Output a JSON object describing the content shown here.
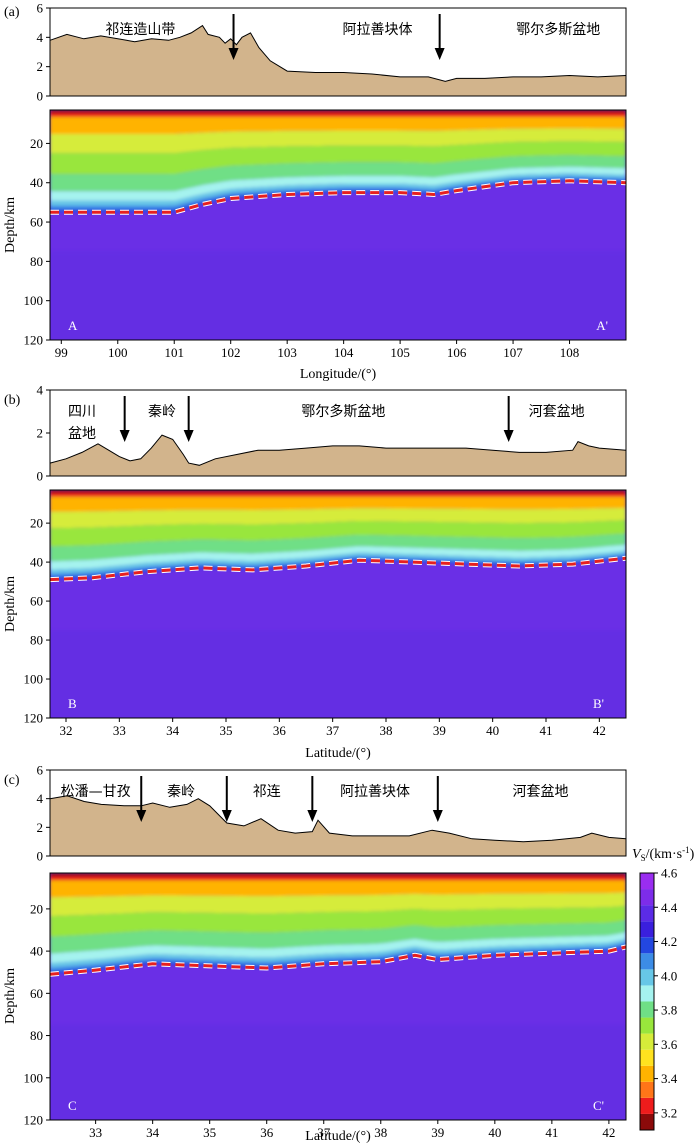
{
  "chart_data": [
    {
      "type": "heatmap",
      "panel_label": "(a)",
      "xlabel": "Longitude/(°)",
      "xlim": [
        98.8,
        109.0
      ],
      "x_ticks": [
        99,
        100,
        101,
        102,
        103,
        104,
        105,
        106,
        107,
        108
      ],
      "topo": {
        "ylim": [
          0,
          6
        ],
        "y_ticks": [
          0,
          2,
          4,
          6
        ],
        "profile": [
          [
            98.8,
            3.8
          ],
          [
            99.1,
            4.2
          ],
          [
            99.4,
            3.9
          ],
          [
            99.7,
            4.1
          ],
          [
            100.0,
            3.9
          ],
          [
            100.3,
            3.7
          ],
          [
            100.6,
            3.9
          ],
          [
            100.9,
            3.8
          ],
          [
            101.1,
            4.0
          ],
          [
            101.3,
            4.3
          ],
          [
            101.5,
            4.8
          ],
          [
            101.6,
            4.2
          ],
          [
            101.8,
            4.0
          ],
          [
            101.9,
            3.6
          ],
          [
            102.0,
            3.9
          ],
          [
            102.1,
            3.5
          ],
          [
            102.2,
            4.0
          ],
          [
            102.35,
            4.3
          ],
          [
            102.5,
            3.3
          ],
          [
            102.7,
            2.4
          ],
          [
            103.0,
            1.7
          ],
          [
            103.5,
            1.6
          ],
          [
            104.0,
            1.6
          ],
          [
            104.5,
            1.5
          ],
          [
            105.0,
            1.3
          ],
          [
            105.5,
            1.3
          ],
          [
            105.8,
            1.0
          ],
          [
            106.0,
            1.2
          ],
          [
            106.5,
            1.2
          ],
          [
            107.0,
            1.3
          ],
          [
            107.5,
            1.3
          ],
          [
            108.0,
            1.4
          ],
          [
            108.5,
            1.3
          ],
          [
            109.0,
            1.4
          ]
        ],
        "regions": [
          {
            "label": "祁连造山带",
            "x": 100.4
          },
          {
            "label": "阿拉善块体",
            "x": 104.6
          },
          {
            "label": "鄂尔多斯盆地",
            "x": 107.8
          }
        ],
        "arrows": [
          102.05,
          105.7
        ]
      },
      "velocity": {
        "ylabel": "Depth/km",
        "ylim": [
          3,
          120
        ],
        "y_ticks": [
          20,
          40,
          60,
          80,
          100,
          120
        ],
        "moho": [
          [
            98.8,
            55
          ],
          [
            99.5,
            55
          ],
          [
            100.5,
            55
          ],
          [
            101.0,
            55
          ],
          [
            101.5,
            51
          ],
          [
            102.0,
            48
          ],
          [
            103.0,
            46
          ],
          [
            104.0,
            45
          ],
          [
            105.0,
            45
          ],
          [
            105.6,
            46
          ],
          [
            106.0,
            44
          ],
          [
            107.0,
            40
          ],
          [
            108.0,
            39
          ],
          [
            109.0,
            40
          ]
        ],
        "profile_start": "A",
        "profile_end": "A'"
      }
    },
    {
      "type": "heatmap",
      "panel_label": "(b)",
      "xlabel": "Latitude/(°)",
      "xlim": [
        31.7,
        42.5
      ],
      "x_ticks": [
        32,
        33,
        34,
        35,
        36,
        37,
        38,
        39,
        40,
        41,
        42
      ],
      "topo": {
        "ylim": [
          0,
          4
        ],
        "y_ticks": [
          0,
          2,
          4
        ],
        "profile": [
          [
            31.7,
            0.6
          ],
          [
            32.0,
            0.8
          ],
          [
            32.3,
            1.1
          ],
          [
            32.6,
            1.5
          ],
          [
            32.8,
            1.2
          ],
          [
            33.0,
            0.9
          ],
          [
            33.2,
            0.7
          ],
          [
            33.4,
            0.8
          ],
          [
            33.6,
            1.3
          ],
          [
            33.8,
            1.9
          ],
          [
            34.0,
            1.7
          ],
          [
            34.2,
            1.0
          ],
          [
            34.3,
            0.6
          ],
          [
            34.5,
            0.5
          ],
          [
            34.8,
            0.8
          ],
          [
            35.2,
            1.0
          ],
          [
            35.6,
            1.2
          ],
          [
            36.0,
            1.2
          ],
          [
            36.5,
            1.3
          ],
          [
            37.0,
            1.4
          ],
          [
            37.5,
            1.4
          ],
          [
            38.0,
            1.3
          ],
          [
            38.5,
            1.3
          ],
          [
            39.0,
            1.3
          ],
          [
            39.5,
            1.3
          ],
          [
            40.0,
            1.2
          ],
          [
            40.5,
            1.1
          ],
          [
            41.0,
            1.1
          ],
          [
            41.5,
            1.2
          ],
          [
            41.6,
            1.6
          ],
          [
            41.8,
            1.4
          ],
          [
            42.0,
            1.3
          ],
          [
            42.5,
            1.2
          ]
        ],
        "regions": [
          {
            "label": "四川",
            "x": 32.3,
            "row": 0
          },
          {
            "label": "盆地",
            "x": 32.3,
            "row": 1
          },
          {
            "label": "秦岭",
            "x": 33.8,
            "row": 0
          },
          {
            "label": "鄂尔多斯盆地",
            "x": 37.2,
            "row": 0
          },
          {
            "label": "河套盆地",
            "x": 41.2,
            "row": 0
          }
        ],
        "arrows": [
          33.1,
          34.3,
          40.3
        ]
      },
      "velocity": {
        "ylabel": "Depth/km",
        "ylim": [
          3,
          120
        ],
        "y_ticks": [
          20,
          40,
          60,
          80,
          100,
          120
        ],
        "moho": [
          [
            31.7,
            49
          ],
          [
            32.5,
            48
          ],
          [
            33.5,
            45
          ],
          [
            34.5,
            43
          ],
          [
            35.5,
            44
          ],
          [
            36.5,
            42
          ],
          [
            37.5,
            39
          ],
          [
            38.5,
            40
          ],
          [
            39.5,
            41
          ],
          [
            40.5,
            42
          ],
          [
            41.5,
            41
          ],
          [
            42.5,
            38
          ]
        ],
        "profile_start": "B",
        "profile_end": "B'"
      }
    },
    {
      "type": "heatmap",
      "panel_label": "(c)",
      "xlabel": "Latitude/(°)",
      "xlim": [
        32.2,
        42.3
      ],
      "x_ticks": [
        33,
        34,
        35,
        36,
        37,
        38,
        39,
        40,
        41,
        42
      ],
      "topo": {
        "ylim": [
          0,
          6
        ],
        "y_ticks": [
          0,
          2,
          4,
          6
        ],
        "profile": [
          [
            32.2,
            4.0
          ],
          [
            32.5,
            4.2
          ],
          [
            32.8,
            3.8
          ],
          [
            33.1,
            3.6
          ],
          [
            33.5,
            3.5
          ],
          [
            33.8,
            3.5
          ],
          [
            34.0,
            3.7
          ],
          [
            34.3,
            3.4
          ],
          [
            34.6,
            3.6
          ],
          [
            34.8,
            4.0
          ],
          [
            35.0,
            3.5
          ],
          [
            35.3,
            2.3
          ],
          [
            35.6,
            2.1
          ],
          [
            35.9,
            2.6
          ],
          [
            36.2,
            1.8
          ],
          [
            36.5,
            1.6
          ],
          [
            36.8,
            1.7
          ],
          [
            36.9,
            2.5
          ],
          [
            37.1,
            1.6
          ],
          [
            37.5,
            1.4
          ],
          [
            38.0,
            1.4
          ],
          [
            38.5,
            1.4
          ],
          [
            38.9,
            1.8
          ],
          [
            39.2,
            1.6
          ],
          [
            39.6,
            1.2
          ],
          [
            40.0,
            1.1
          ],
          [
            40.5,
            1.0
          ],
          [
            41.0,
            1.1
          ],
          [
            41.5,
            1.3
          ],
          [
            41.7,
            1.6
          ],
          [
            42.0,
            1.3
          ],
          [
            42.3,
            1.2
          ]
        ],
        "regions": [
          {
            "label": "松潘—甘孜",
            "x": 33.0
          },
          {
            "label": "秦岭",
            "x": 34.5
          },
          {
            "label": "祁连",
            "x": 36.0
          },
          {
            "label": "阿拉善块体",
            "x": 37.9
          },
          {
            "label": "河套盆地",
            "x": 40.8
          }
        ],
        "arrows": [
          33.8,
          35.3,
          36.8,
          39.0
        ]
      },
      "velocity": {
        "ylabel": "Depth/km",
        "ylim": [
          3,
          120
        ],
        "y_ticks": [
          20,
          40,
          60,
          80,
          100,
          120
        ],
        "moho": [
          [
            32.2,
            51
          ],
          [
            33.0,
            49
          ],
          [
            34.0,
            46
          ],
          [
            35.0,
            47
          ],
          [
            36.0,
            48
          ],
          [
            37.0,
            46
          ],
          [
            38.0,
            45
          ],
          [
            38.6,
            42
          ],
          [
            39.0,
            44
          ],
          [
            40.0,
            42
          ],
          [
            41.0,
            41
          ],
          [
            42.0,
            40
          ],
          [
            42.3,
            38
          ]
        ],
        "profile_start": "C",
        "profile_end": "C'"
      }
    }
  ],
  "colorbar": {
    "title_symbol": "V",
    "title_subscript": "S",
    "title_units": "/(km·s",
    "title_superscript": "-1",
    "title_close": ")",
    "ticks": [
      "3.2",
      "3.4",
      "3.6",
      "3.8",
      "4.0",
      "4.2",
      "4.4",
      "4.6"
    ],
    "tick_values": [
      3.2,
      3.4,
      3.6,
      3.8,
      4.0,
      4.2,
      4.4,
      4.6
    ],
    "range": [
      3.1,
      4.6
    ],
    "colors": [
      "#8b0a0a",
      "#ee1c1c",
      "#ff7518",
      "#ffb300",
      "#ffe21f",
      "#d6ec3a",
      "#99e63c",
      "#6fdf86",
      "#a5f3ef",
      "#67c7e7",
      "#3c8ce6",
      "#2347e0",
      "#3a1fdd",
      "#5b2be6",
      "#7d2cea",
      "#9a2df0"
    ]
  },
  "colors": {
    "topo_fill": "#d2b48c",
    "moho_line": "#e62020",
    "moho_halo": "#ffffff",
    "arrow": "#000000",
    "mantle": "#6a2fe6"
  }
}
